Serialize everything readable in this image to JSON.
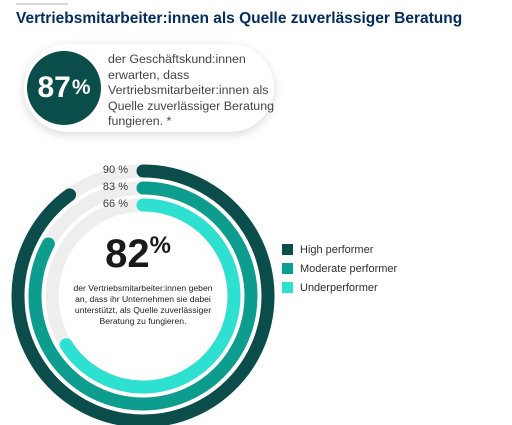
{
  "header": {
    "title": "Vertriebsmitarbeiter:innen als Quelle zuverlässiger Beratung"
  },
  "callout": {
    "value": "87",
    "percent_sign": "%",
    "text": "der Geschäftskund:innen erwarten, dass Vertriebsmitarbeiter:innen als Quelle zuverlässiger Beratung fungieren. *"
  },
  "center": {
    "value": "82",
    "percent_sign": "%",
    "text": "der Vertriebsmitarbeiter:innen geben an, dass ihr Unternehmen sie dabei unterstützt, als Quelle zuverlässiger Beratung zu fungieren."
  },
  "chart_data": {
    "type": "radial-bar",
    "series": [
      {
        "name": "High performer",
        "value": 90,
        "label": "90 %",
        "color": "#0a4d4a"
      },
      {
        "name": "Moderate performer",
        "value": 83,
        "label": "83 %",
        "color": "#0d9d8f"
      },
      {
        "name": "Underperformer",
        "value": 66,
        "label": "66 %",
        "color": "#2ee0d0"
      }
    ],
    "max": 100,
    "legend_position": "right"
  },
  "colors": {
    "title": "#032d60",
    "callout_circle": "#0a4d4a",
    "track": "#eeeeee"
  }
}
